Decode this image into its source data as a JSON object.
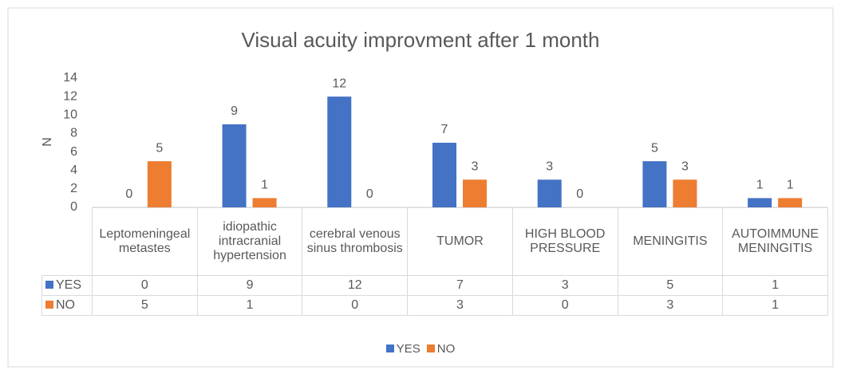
{
  "chart_data": {
    "type": "bar",
    "title": "Visual acuity improvment after 1 month",
    "y_label": "N",
    "categories": [
      "Leptomeningeal metastes",
      "idiopathic intracranial hypertension",
      "cerebral venous sinus thrombosis",
      "TUMOR",
      "HIGH BLOOD PRESSURE",
      "MENINGITIS",
      "AUTOIMMUNE MENINGITIS"
    ],
    "series": [
      {
        "name": "YES",
        "color": "#4472c4",
        "values": [
          0,
          9,
          12,
          7,
          3,
          5,
          1
        ]
      },
      {
        "name": "NO",
        "color": "#ed7d31",
        "values": [
          5,
          1,
          0,
          3,
          0,
          3,
          1
        ]
      }
    ],
    "ylim": [
      0,
      14
    ],
    "yticks": [
      0,
      2,
      4,
      6,
      8,
      10,
      12,
      14
    ],
    "grid": false,
    "legend": "bottom"
  }
}
